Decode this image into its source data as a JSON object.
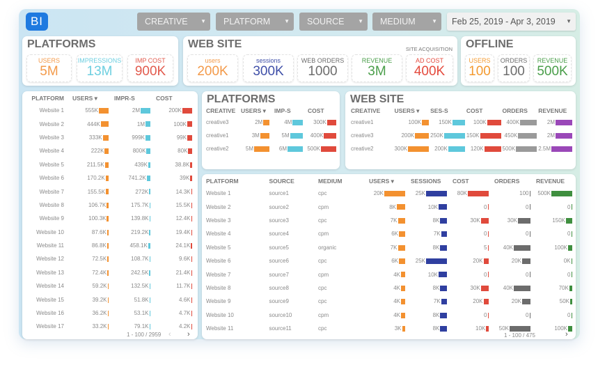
{
  "colors": {
    "users": "#f39130",
    "impr": "#5ec8dc",
    "cost": "#e04a3c",
    "sessions": "#2f3fa0",
    "orders": "#9a9a9a",
    "orders_dark": "#6c6c6c",
    "revenue_purple": "#9a48b8",
    "revenue_green": "#3f8f3f",
    "logo": "#1f7ae0"
  },
  "header": {
    "logo": "BI",
    "filters": [
      "CREATIVE",
      "PLATFORM",
      "SOURCE",
      "MEDIUM"
    ],
    "date_range": "Feb 25, 2019 - Apr 3, 2019"
  },
  "platforms_kpi": {
    "title": "PLATFORMS",
    "items": [
      {
        "label": "USERS",
        "value": "5M",
        "color": "#f39a4a"
      },
      {
        "label": "IMPRESSIONS",
        "value": "13M",
        "color": "#6dcfe0"
      },
      {
        "label": "IMP COST",
        "value": "900K",
        "color": "#e25b4e"
      }
    ]
  },
  "website_kpi": {
    "title": "WEB SITE",
    "note": "SITE ACQUISITION",
    "items": [
      {
        "label": "users",
        "value": "200K",
        "color": "#f39a4a"
      },
      {
        "label": "sessions",
        "value": "300K",
        "color": "#3f4fa8"
      },
      {
        "label": "WEB ORDERS",
        "value": "1000",
        "color": "#6d6d6d"
      },
      {
        "label": "REVENUE",
        "value": "3M",
        "color": "#4a9e4a"
      },
      {
        "label": "AD COST",
        "value": "400K",
        "color": "#e44b3e"
      }
    ]
  },
  "offline_kpi": {
    "title": "OFFLINE",
    "items": [
      {
        "label": "USERS",
        "value": "100",
        "color": "#f39a30"
      },
      {
        "label": "ORDERS",
        "value": "100",
        "color": "#6d6d6d"
      },
      {
        "label": "REVENUE",
        "value": "500K",
        "color": "#4a9e4a"
      }
    ]
  },
  "left_table": {
    "headers": [
      "PLATFORM",
      "USERS ▾",
      "IMPR-S",
      "COST"
    ],
    "bars": [
      "users",
      "impr",
      "cost"
    ],
    "rows": [
      [
        "Website 1",
        "555K",
        "2M",
        "200K"
      ],
      [
        "Website 2",
        "444K",
        "1M",
        "100K"
      ],
      [
        "Website 3",
        "333K",
        "999K",
        "99K"
      ],
      [
        "Website 4",
        "222K",
        "800K",
        "80K"
      ],
      [
        "Website 5",
        "211.5K",
        "439K",
        "38.8K"
      ],
      [
        "Website 6",
        "170.2K",
        "741.2K",
        "39K"
      ],
      [
        "Website 7",
        "155.5K",
        "272K",
        "14.3K"
      ],
      [
        "Website 8",
        "106.7K",
        "175.7K",
        "15.5K"
      ],
      [
        "Website 9",
        "100.3K",
        "139.8K",
        "12.4K"
      ],
      [
        "Website 10",
        "87.6K",
        "219.2K",
        "19.4K"
      ],
      [
        "Website 11",
        "86.8K",
        "458.1K",
        "24.1K"
      ],
      [
        "Website 12",
        "72.5K",
        "108.7K",
        "9.6K"
      ],
      [
        "Website 13",
        "72.4K",
        "242.5K",
        "21.4K"
      ],
      [
        "Website 14",
        "59.2K",
        "132.5K",
        "11.7K"
      ],
      [
        "Website 15",
        "39.2K",
        "51.8K",
        "4.6K"
      ],
      [
        "Website 16",
        "36.2K",
        "53.1K",
        "4.7K"
      ],
      [
        "Website 17",
        "33.2K",
        "79.1K",
        "4.2K"
      ]
    ],
    "pagination": "1 - 100 / 2959"
  },
  "platforms_creative": {
    "title": "PLATFORMS",
    "headers": [
      "CREATIVE",
      "USERS ▾",
      "IMP-S",
      "COST"
    ],
    "bars": [
      "users",
      "impr",
      "cost"
    ],
    "rows": [
      [
        "creative3",
        "2M",
        "4M",
        "300K"
      ],
      [
        "creative1",
        "3M",
        "5M",
        "400K"
      ],
      [
        "creative2",
        "5M",
        "6M",
        "500K"
      ]
    ]
  },
  "website_creative": {
    "title": "WEB SITE",
    "headers": [
      "CREATIVE",
      "USERS ▾",
      "SES-S",
      "COST",
      "ORDERS",
      "REVENUE"
    ],
    "bars": [
      "users",
      "impr",
      "cost",
      "orders",
      "revenue_purple"
    ],
    "rows": [
      [
        "creative1",
        "100K",
        "150K",
        "100K",
        "400K",
        "2M"
      ],
      [
        "creative3",
        "200K",
        "250K",
        "150K",
        "450K",
        "2M"
      ],
      [
        "creative2",
        "300K",
        "200K",
        "120K",
        "500K",
        "2.5M"
      ]
    ]
  },
  "bottom_table": {
    "headers": [
      "PLATFORM",
      "SOURCE",
      "MEDIUM",
      "USERS ▾",
      "SESSIONS",
      "COST",
      "ORDERS",
      "REVENUE"
    ],
    "bars": [
      "users",
      "sessions",
      "cost",
      "orders_dark",
      "revenue_green"
    ],
    "rows": [
      [
        "Website 1",
        "source1",
        "cpc",
        "20K",
        "25K",
        "80K",
        "100",
        "500K"
      ],
      [
        "Website 2",
        "source2",
        "cpm",
        "8K",
        "10K",
        "0",
        "0",
        "0"
      ],
      [
        "Website 3",
        "source3",
        "cpc",
        "7K",
        "8K",
        "30K",
        "30K",
        "150K"
      ],
      [
        "Website 4",
        "source4",
        "cpm",
        "6K",
        "7K",
        "0",
        "0",
        "0"
      ],
      [
        "Website 5",
        "source5",
        "organic",
        "7K",
        "8K",
        "5",
        "40K",
        "100K"
      ],
      [
        "Website 6",
        "source6",
        "cpc",
        "6K",
        "25K",
        "20K",
        "20K",
        "0K"
      ],
      [
        "Website 7",
        "source7",
        "cpm",
        "4K",
        "10K",
        "0",
        "0",
        "0"
      ],
      [
        "Website 8",
        "source8",
        "cpc",
        "4K",
        "8K",
        "30K",
        "40K",
        "70K"
      ],
      [
        "Website 9",
        "source9",
        "cpc",
        "4K",
        "7K",
        "20K",
        "20K",
        "50K"
      ],
      [
        "Website 10",
        "source10",
        "cpm",
        "4K",
        "8K",
        "0",
        "0",
        "0"
      ],
      [
        "Website 11",
        "source11",
        "cpc",
        "3K",
        "8K",
        "10K",
        "50K",
        "100K"
      ]
    ],
    "pagination": "1 - 100 / 475"
  }
}
